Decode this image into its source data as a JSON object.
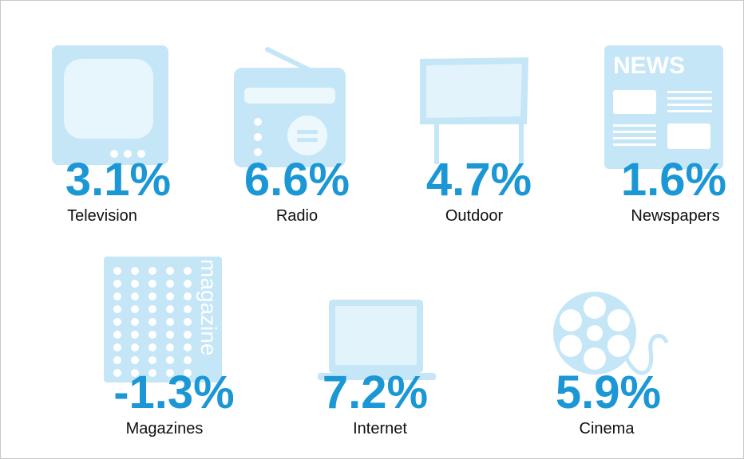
{
  "items": [
    {
      "value": "3.1%",
      "label": "Television"
    },
    {
      "value": "6.6%",
      "label": "Radio"
    },
    {
      "value": "4.7%",
      "label": "Outdoor"
    },
    {
      "value": "1.6%",
      "label": "Newspapers"
    },
    {
      "value": "-1.3%",
      "label": "Magazines"
    },
    {
      "value": "7.2%",
      "label": "Internet"
    },
    {
      "value": "5.9%",
      "label": "Cinema"
    }
  ]
}
